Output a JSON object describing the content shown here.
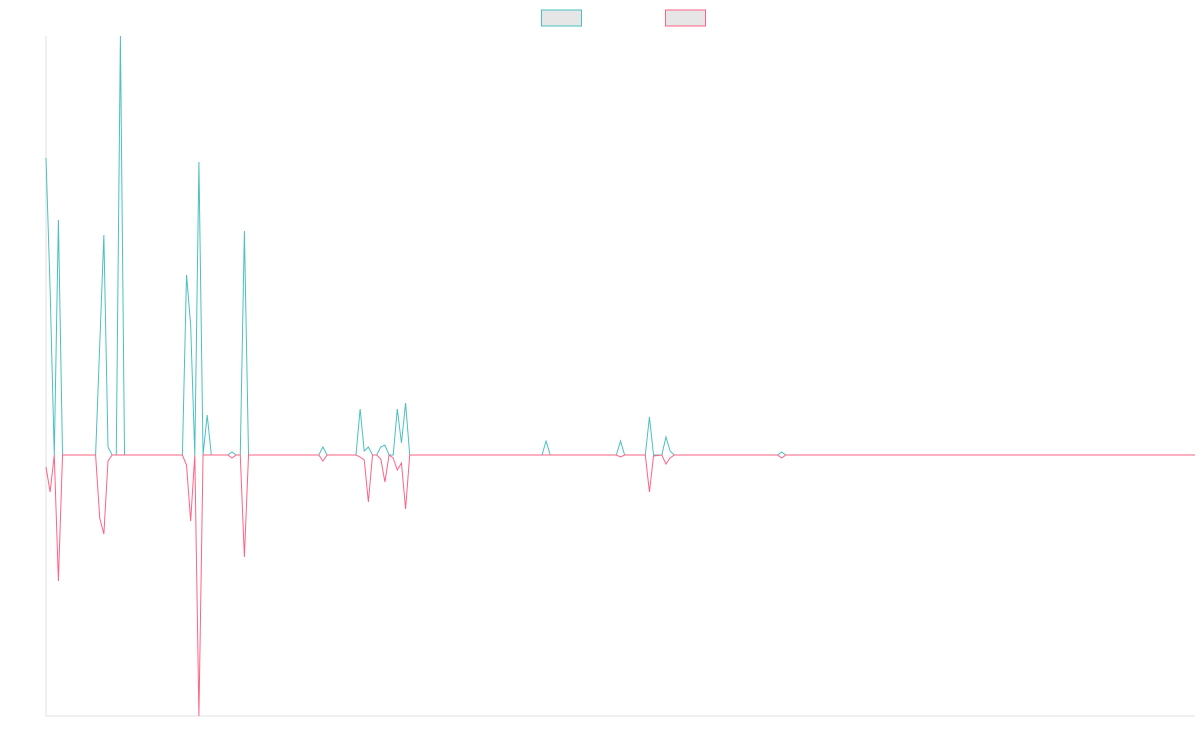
{
  "chart_data": {
    "type": "line",
    "x": [
      0,
      1,
      2,
      3,
      4,
      12,
      13,
      14,
      15,
      16,
      17,
      18,
      19,
      33,
      34,
      35,
      36,
      37,
      38,
      39,
      40,
      44,
      45,
      46,
      47,
      48,
      49,
      66,
      67,
      68,
      75,
      76,
      77,
      78,
      79,
      80,
      81,
      82,
      83,
      84,
      85,
      86,
      87,
      88,
      120,
      121,
      122,
      138,
      139,
      140,
      145,
      146,
      147,
      149,
      150,
      151,
      152,
      177,
      178,
      179,
      278
    ],
    "series": [
      {
        "color": "#4bc0c0",
        "values": [
          297,
          165,
          0,
          235,
          0,
          0,
          110,
          220,
          8,
          0,
          0,
          419,
          0,
          0,
          180,
          130,
          0,
          293,
          0,
          40,
          0,
          0,
          3,
          0,
          0,
          224,
          0,
          0,
          8,
          0,
          0,
          46,
          4,
          8,
          0,
          0,
          8,
          10,
          0,
          0,
          46,
          12,
          52,
          0,
          0,
          14,
          0,
          0,
          14,
          0,
          0,
          38,
          0,
          0,
          18,
          4,
          0,
          0,
          3,
          0,
          0
        ]
      },
      {
        "color": "#ff6384",
        "values": [
          -12,
          -37,
          0,
          -126,
          0,
          0,
          -63,
          -79,
          -6,
          0,
          0,
          0,
          0,
          0,
          -10,
          -66,
          0,
          -261,
          0,
          0,
          0,
          0,
          -3,
          0,
          0,
          -102,
          0,
          0,
          -6,
          0,
          0,
          -2,
          -5,
          -47,
          0,
          0,
          -4,
          -27,
          0,
          -3,
          -15,
          -8,
          -54,
          0,
          0,
          0,
          0,
          0,
          -2,
          0,
          0,
          -37,
          -1,
          0,
          -9,
          -3,
          0,
          0,
          -3,
          0,
          0
        ]
      }
    ],
    "xlim": [
      0,
      278
    ],
    "ylim": [
      -261,
      419
    ],
    "legend": "top"
  }
}
